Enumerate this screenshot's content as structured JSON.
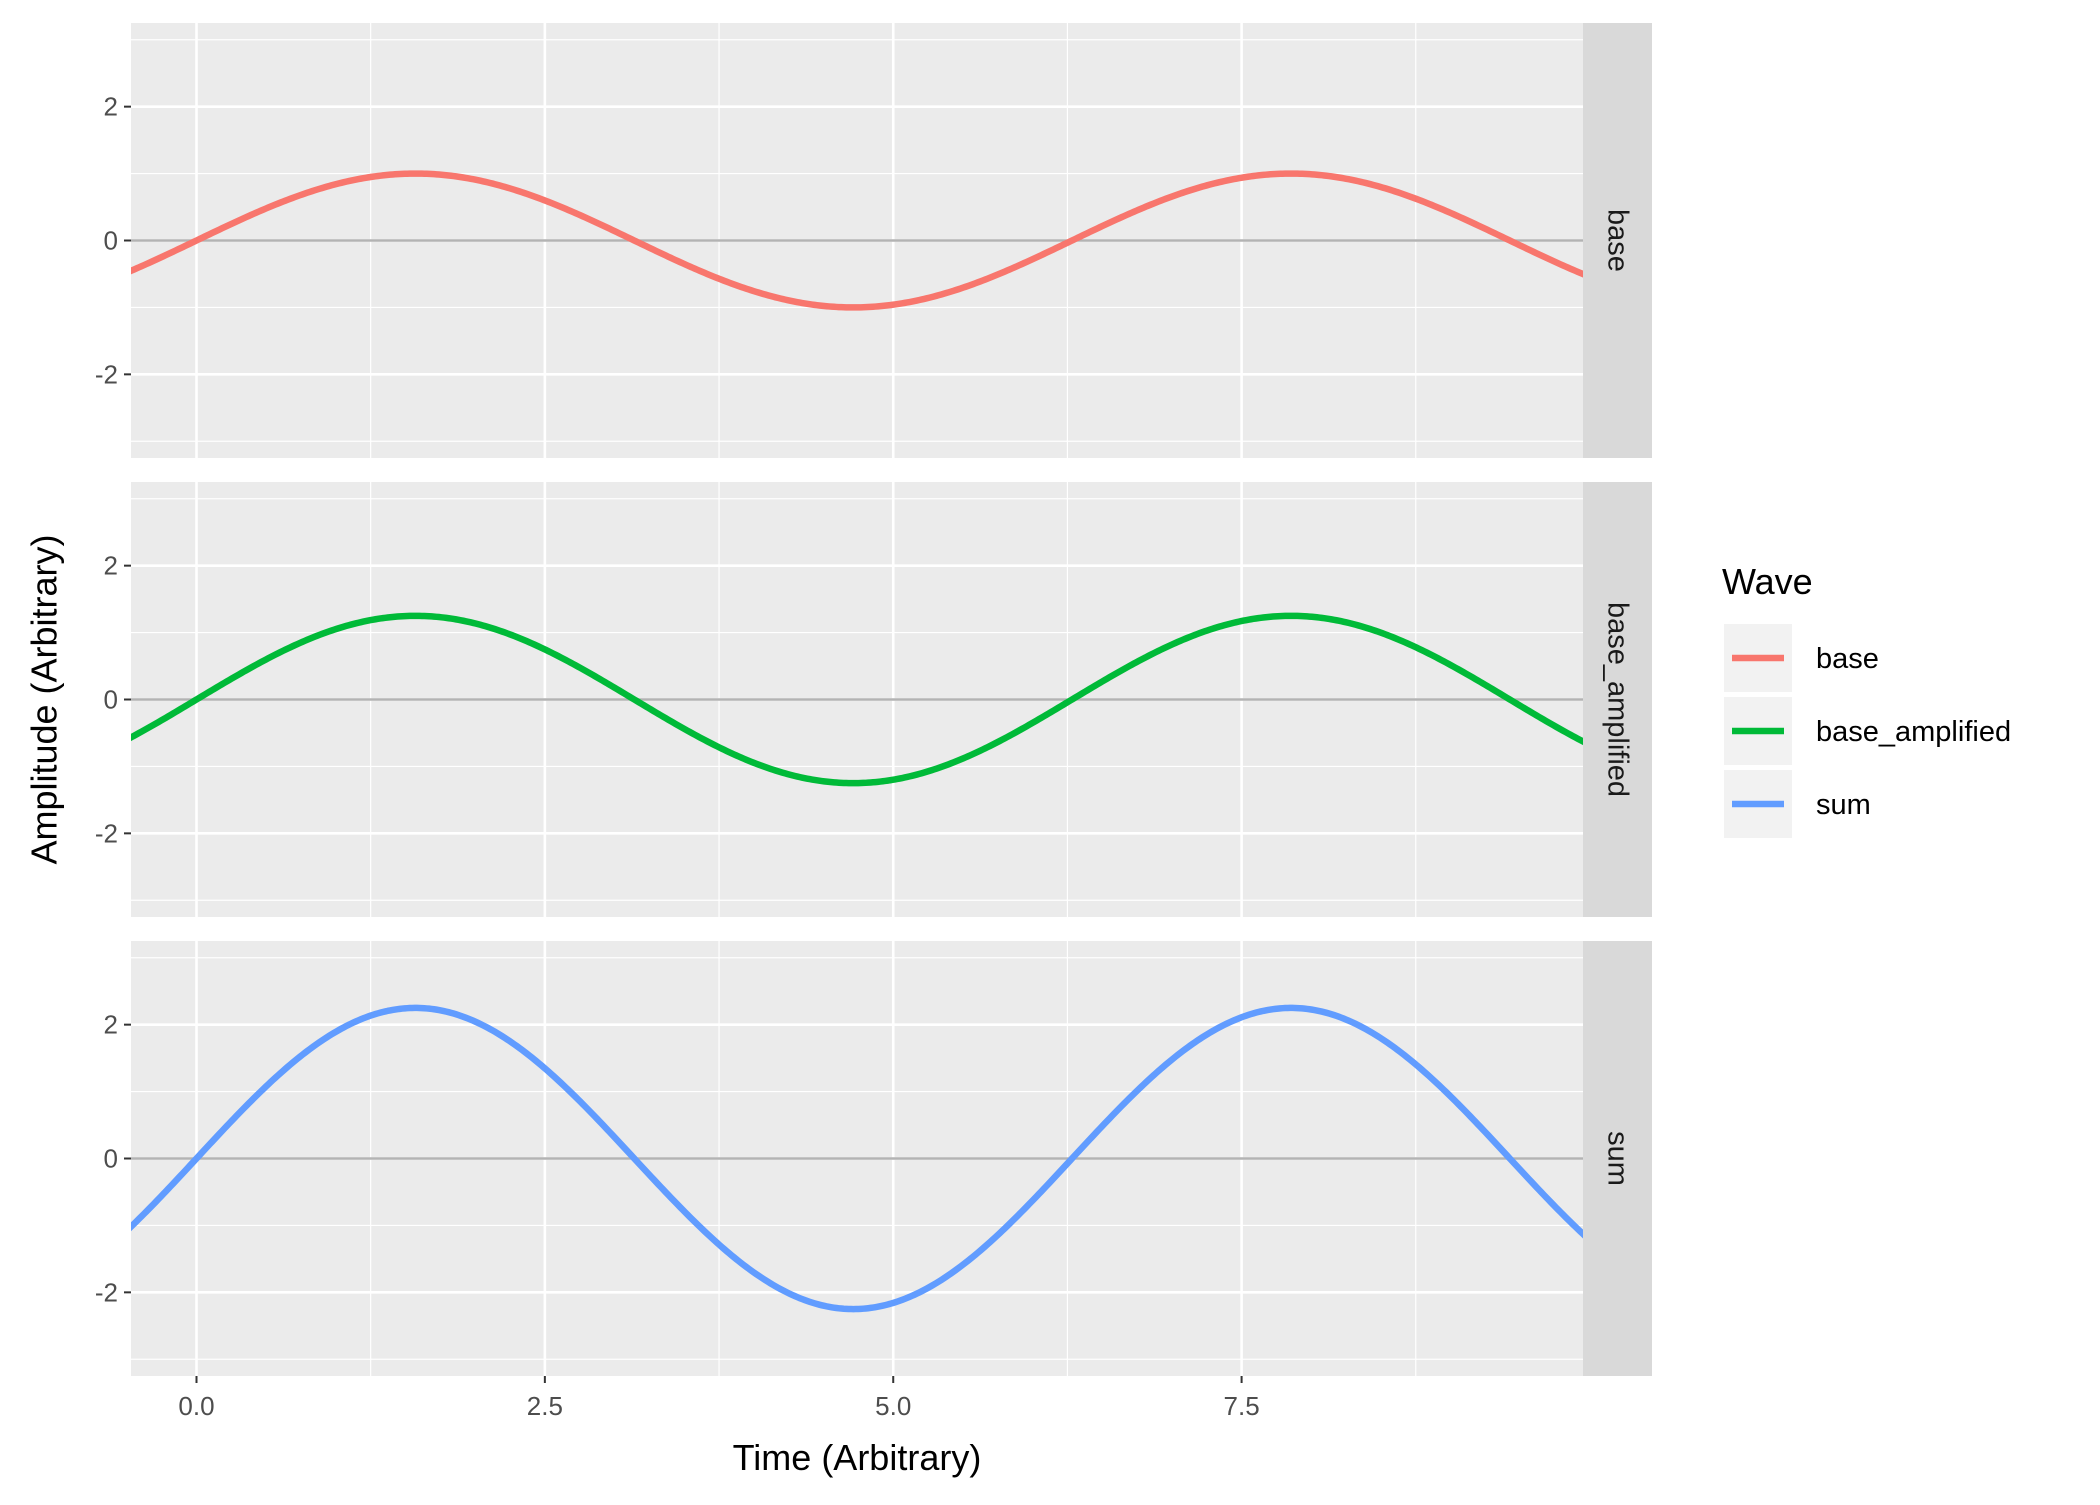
{
  "chart_data": {
    "type": "line",
    "layout": "faceted-rows",
    "x": {
      "label": "Time (Arbitrary)",
      "range": [
        -0.47,
        9.95
      ],
      "ticks": [
        0.0,
        2.5,
        5.0,
        7.5
      ],
      "tick_labels": [
        "0.0",
        "2.5",
        "5.0",
        "7.5"
      ]
    },
    "y": {
      "label": "Amplitude (Arbitrary)",
      "range": [
        -3.25,
        3.25
      ],
      "ticks": [
        -2,
        0,
        2
      ],
      "tick_labels": [
        "-2",
        "0",
        "2"
      ]
    },
    "reference_line": {
      "y": 0,
      "color": "#b3b3b3"
    },
    "grid": true,
    "legend": {
      "title": "Wave",
      "placement": "right",
      "entries": [
        {
          "label": "base",
          "color": "#F8766D"
        },
        {
          "label": "base_amplified",
          "color": "#00BA38"
        },
        {
          "label": "sum",
          "color": "#619CFF"
        }
      ]
    },
    "facets": [
      {
        "strip_label": "base",
        "series": "base",
        "color": "#F8766D",
        "function": "sin",
        "amplitude": 1.0,
        "x_range": [
          -0.5,
          10.0
        ]
      },
      {
        "strip_label": "base_amplified",
        "series": "base_amplified",
        "color": "#00BA38",
        "function": "sin",
        "amplitude": 1.25,
        "x_range": [
          -0.5,
          10.0
        ]
      },
      {
        "strip_label": "sum",
        "series": "sum",
        "color": "#619CFF",
        "function": "sin",
        "amplitude": 2.25,
        "x_range": [
          -0.5,
          10.0
        ]
      }
    ]
  }
}
